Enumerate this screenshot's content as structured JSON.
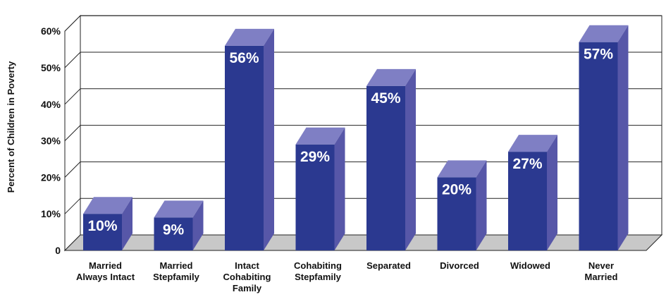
{
  "chart_data": {
    "type": "bar",
    "title": "",
    "xlabel": "",
    "ylabel": "Percent of Children in Poverty",
    "ylim": [
      0,
      60
    ],
    "yticks": [
      0,
      10,
      20,
      30,
      40,
      50,
      60
    ],
    "ytick_labels": [
      "0",
      "10%",
      "20%",
      "30%",
      "40%",
      "50%",
      "60%"
    ],
    "grid": true,
    "categories": [
      [
        "Married",
        "Always Intact"
      ],
      [
        "Married",
        "Stepfamily"
      ],
      [
        "Intact",
        "Cohabiting",
        "Family"
      ],
      [
        "Cohabiting",
        "Stepfamily"
      ],
      [
        "Separated"
      ],
      [
        "Divorced"
      ],
      [
        "Widowed"
      ],
      [
        "Never",
        "Married"
      ]
    ],
    "values": [
      10,
      9,
      56,
      29,
      45,
      20,
      27,
      57
    ],
    "data_labels": [
      "10%",
      "9%",
      "56%",
      "29%",
      "45%",
      "20%",
      "27%",
      "57%"
    ],
    "colors": {
      "bar_front": "#2b3990",
      "bar_top": "#7f7fc4",
      "bar_side": "#5757a8",
      "floor": "#c8c8c8"
    }
  }
}
